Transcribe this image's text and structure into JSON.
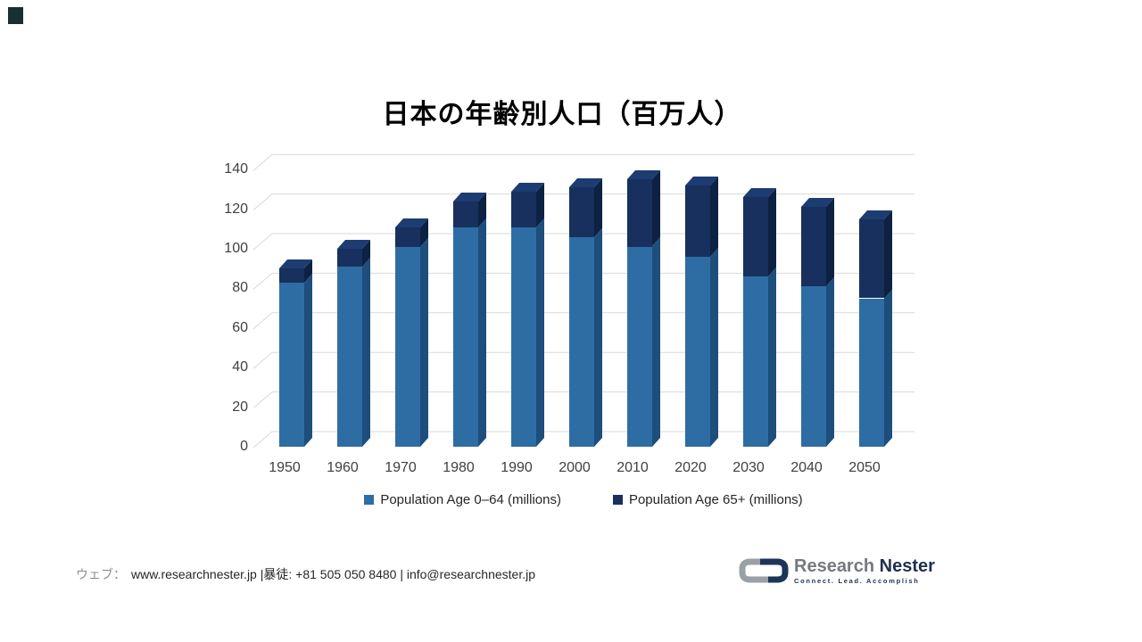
{
  "page": {
    "title": "日本の年齢別人口（百万人）"
  },
  "decor": {
    "corner_square_color": "#17312e"
  },
  "chart_data": {
    "type": "bar",
    "stacked": true,
    "effect": "3d-column",
    "title": "日本の年齢別人口（百万人）",
    "categories": [
      "1950",
      "1960",
      "1970",
      "1980",
      "1990",
      "2000",
      "2010",
      "2020",
      "2030",
      "2040",
      "2050"
    ],
    "series": [
      {
        "name": "Population Age 0–64 (millions)",
        "color": "#2e6da4",
        "side_color": "#1d4e7c",
        "top_color": "#3a7cb5",
        "values": [
          83,
          91,
          101,
          111,
          111,
          106,
          101,
          96,
          86,
          81,
          75
        ]
      },
      {
        "name": "Population Age 65+ (millions)",
        "color": "#17305e",
        "side_color": "#0d2142",
        "top_color": "#1d3c72",
        "values": [
          7,
          9,
          10,
          13,
          18,
          25,
          34,
          36,
          40,
          40,
          40
        ]
      }
    ],
    "totals": [
      90,
      100,
      111,
      124,
      129,
      131,
      135,
      132,
      126,
      121,
      115
    ],
    "ylim": [
      0,
      140
    ],
    "ytick_step": 20,
    "grid": true,
    "gridline_color": "#d9d9d9",
    "legend_position": "bottom"
  },
  "footer": {
    "web_label": "ウェブ：",
    "contact": "www.researchnester.jp |暴徒: +81 505 050 8480 | info@researchnester.jp"
  },
  "logo": {
    "name_primary": "Research",
    "name_secondary": "Nester",
    "tagline": "Connect. Lead. Accomplish",
    "gray": "#9aa0a5",
    "navy": "#1e3558"
  }
}
